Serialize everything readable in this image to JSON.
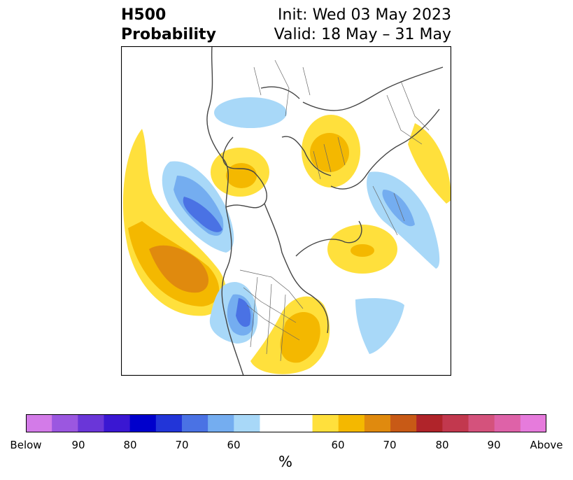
{
  "title": {
    "left_line1": "H500",
    "left_line2": "Probability",
    "right_line1": "Init: Wed 03 May 2023",
    "right_line2": "Valid: 18 May – 31 May"
  },
  "colorbar": {
    "unit": "%",
    "tick_labels": [
      "Below",
      "90",
      "80",
      "70",
      "60",
      "60",
      "70",
      "80",
      "90",
      "Above"
    ],
    "colors": [
      "#d37be8",
      "#9b57e0",
      "#6a36d8",
      "#3a17d2",
      "#0000cc",
      "#2235d8",
      "#4a72e4",
      "#74adf0",
      "#a8d8f8",
      "#ffffff",
      "#ffe03c",
      "#f4b800",
      "#e08a0e",
      "#c85a16",
      "#b0242a",
      "#c2384e",
      "#d4527c",
      "#de62a8",
      "#e67bdc"
    ]
  },
  "legend_colors": {
    "below_light": "#a8d8f8",
    "below_mid": "#74adf0",
    "below_strong": "#4a72e4",
    "above_light": "#ffe03c",
    "above_mid": "#f4b800",
    "above_strong": "#e08a0e"
  }
}
